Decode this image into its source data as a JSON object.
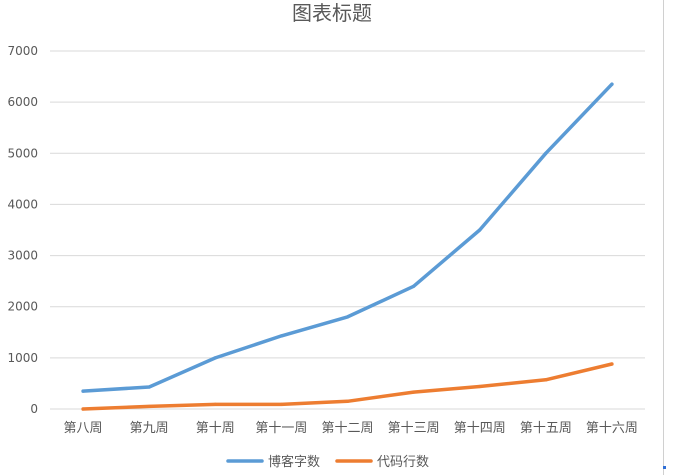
{
  "chart_data": {
    "type": "line",
    "title": "图表标题",
    "categories": [
      "第八周",
      "第九周",
      "第十周",
      "第十一周",
      "第十二周",
      "第十三周",
      "第十四周",
      "第十五周",
      "第十六周"
    ],
    "ylim": [
      0,
      7000
    ],
    "yticks": [
      0,
      1000,
      2000,
      3000,
      4000,
      5000,
      6000,
      7000
    ],
    "grid": true,
    "legend": "bottom",
    "series": [
      {
        "name": "博客字数",
        "color": "#5b9bd5",
        "values": [
          350,
          430,
          1000,
          1430,
          1800,
          2400,
          3500,
          5000,
          6350
        ]
      },
      {
        "name": "代码行数",
        "color": "#ed7d31",
        "values": [
          0,
          50,
          90,
          90,
          150,
          330,
          440,
          570,
          880
        ]
      }
    ]
  }
}
